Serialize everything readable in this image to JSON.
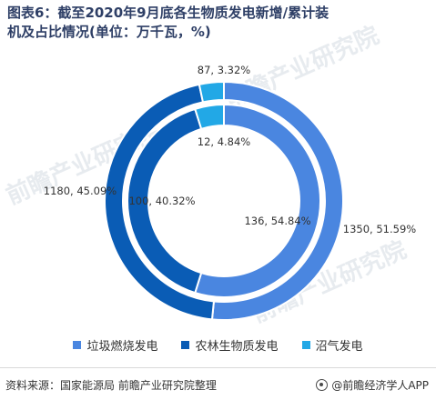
{
  "title": "图表6：截至2020年9月底各生物质发电新增/累计装机及占比情况(单位：万千瓦，%)",
  "chart_data": {
    "type": "donut",
    "legend_position": "bottom",
    "categories": [
      "垃圾燃烧发电",
      "农林生物质发电",
      "沼气发电"
    ],
    "colors": [
      "#4a86e0",
      "#0a5cb5",
      "#22a8e6"
    ],
    "series": [
      {
        "ring": "outer",
        "values": [
          1350,
          1180,
          87
        ],
        "percents": [
          51.59,
          45.09,
          3.32
        ],
        "labels": [
          "1350, 51.59%",
          "1180, 45.09%",
          "87, 3.32%"
        ]
      },
      {
        "ring": "inner",
        "values": [
          136,
          100,
          12
        ],
        "percents": [
          54.84,
          40.32,
          4.84
        ],
        "labels": [
          "136, 54.84%",
          "100, 40.32%",
          "12, 4.84%"
        ]
      }
    ]
  },
  "legend": {
    "items": [
      {
        "label": "垃圾燃烧发电",
        "color": "#4a86e0"
      },
      {
        "label": "农林生物质发电",
        "color": "#0a5cb5"
      },
      {
        "label": "沼气发电",
        "color": "#22a8e6"
      }
    ]
  },
  "footer": {
    "source": "资料来源：国家能源局 前瞻产业研究院整理",
    "brand": "@前瞻经济学人APP"
  },
  "watermark": {
    "text": "前瞻产业研究院"
  }
}
